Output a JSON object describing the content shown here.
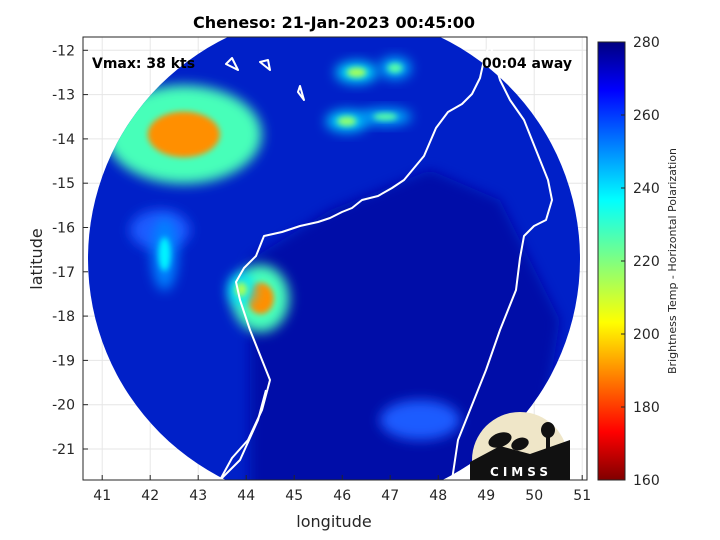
{
  "chart_data": {
    "type": "heatmap",
    "title": "Cheneso: 21-Jan-2023 00:45:00",
    "xlabel": "longitude",
    "ylabel": "latitude",
    "xlim": [
      40.6,
      51.1
    ],
    "ylim": [
      -21.7,
      -11.7
    ],
    "xticks": [
      41,
      42,
      43,
      44,
      45,
      46,
      47,
      48,
      49,
      50,
      51
    ],
    "yticks": [
      -12,
      -13,
      -14,
      -15,
      -16,
      -17,
      -18,
      -19,
      -20,
      -21
    ],
    "grid": true,
    "colorbar": {
      "label": "Brightness Temp - Horizontal Polarization",
      "range": [
        160,
        280
      ],
      "ticks": [
        160,
        180,
        200,
        220,
        240,
        260,
        280
      ],
      "colormap": "jet"
    },
    "swath": {
      "center": [
        45.85,
        -16.75
      ],
      "radius_deg_lon": 4.95,
      "radius_deg_lat": 4.8
    },
    "background_temp": 265,
    "features": [
      {
        "lon": 42.7,
        "lat": -13.9,
        "temp": 190
      },
      {
        "lon": 44.3,
        "lat": -17.6,
        "temp": 190
      },
      {
        "lon": 46.3,
        "lat": -12.5,
        "temp": 215
      },
      {
        "lon": 47.1,
        "lat": -12.4,
        "temp": 225
      },
      {
        "lon": 46.1,
        "lat": -13.6,
        "temp": 218
      },
      {
        "lon": 46.9,
        "lat": -13.5,
        "temp": 225
      },
      {
        "lon": 42.3,
        "lat": -16.6,
        "temp": 238
      },
      {
        "lon": 43.9,
        "lat": -17.4,
        "temp": 215
      }
    ],
    "annotations": [
      {
        "text": "Vmax: 38 kts",
        "position": "top-left"
      },
      {
        "text": "00:04 away",
        "position": "top-right"
      }
    ]
  },
  "logo": {
    "text": "CIMSS"
  }
}
